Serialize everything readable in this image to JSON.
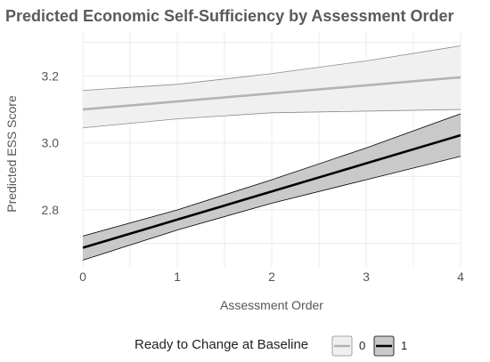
{
  "chart_data": {
    "type": "line",
    "title": "Predicted Economic Self-Sufficiency by Assessment Order",
    "xlabel": "Assessment Order",
    "ylabel": "Predicted ESS Score",
    "x": [
      0,
      1,
      2,
      3,
      4
    ],
    "xticks": [
      "0",
      "1",
      "2",
      "3",
      "4"
    ],
    "xlim": [
      0,
      4
    ],
    "yticks": [
      "2.8",
      "3.0",
      "3.2"
    ],
    "ytick_values": [
      2.8,
      3.0,
      3.2
    ],
    "ylim": [
      2.63,
      3.31
    ],
    "grid": true,
    "legend": {
      "title": "Ready to Change at Baseline",
      "placement": "bottom"
    },
    "series": [
      {
        "name": "0",
        "values": [
          3.1,
          3.124,
          3.148,
          3.172,
          3.196
        ],
        "lower": [
          3.045,
          3.072,
          3.09,
          3.095,
          3.1
        ],
        "upper": [
          3.157,
          3.175,
          3.207,
          3.245,
          3.29
        ],
        "line_color": "#b3b3b3",
        "ribbon_color": "#f0f0f0",
        "ribbon_edge": "#8c8c8c"
      },
      {
        "name": "1",
        "values": [
          2.687,
          2.771,
          2.855,
          2.939,
          3.023
        ],
        "lower": [
          2.65,
          2.74,
          2.82,
          2.89,
          2.96
        ],
        "upper": [
          2.722,
          2.8,
          2.89,
          2.985,
          3.087
        ],
        "line_color": "#000000",
        "ribbon_color": "#c9c9c9",
        "ribbon_edge": "#000000"
      }
    ]
  }
}
